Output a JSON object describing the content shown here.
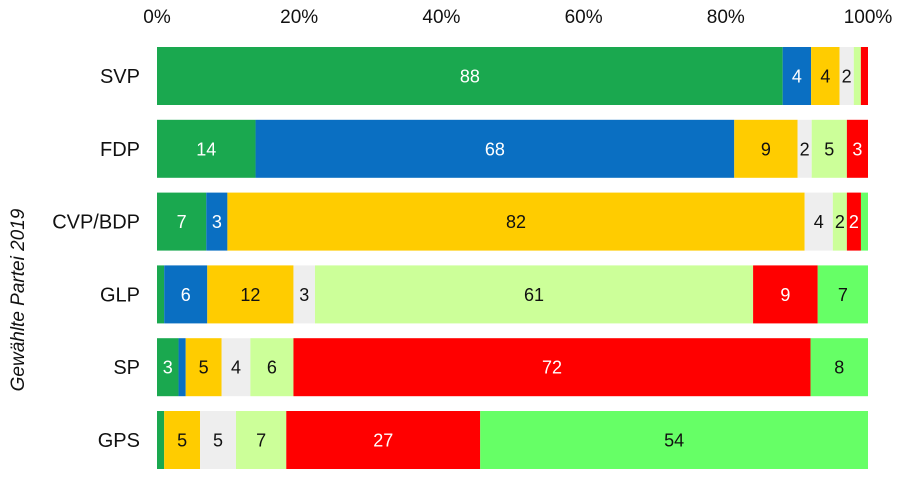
{
  "chart_data": {
    "type": "bar",
    "orientation": "horizontal",
    "stacked": true,
    "normalized_percent": true,
    "ylabel": "Gewählte Partei 2019",
    "xlabel": "",
    "xlim": [
      0,
      100
    ],
    "x_ticks": [
      "0%",
      "20%",
      "40%",
      "60%",
      "80%",
      "100%"
    ],
    "x_tick_values": [
      0,
      20,
      40,
      60,
      80,
      100
    ],
    "categories": [
      "SVP",
      "FDP",
      "CVP/BDP",
      "GLP",
      "SP",
      "GPS"
    ],
    "segment_colors": [
      "#1aa84f",
      "#0a6fc2",
      "#ffcc00",
      "#eeeeee",
      "#ccff99",
      "#ff0000",
      "#66ff66"
    ],
    "label_colors": [
      "#ffffff",
      "#ffffff",
      "#111111",
      "#111111",
      "#111111",
      "#ffffff",
      "#111111"
    ],
    "series": [
      {
        "values": [
          88,
          14,
          7,
          1,
          3,
          1
        ]
      },
      {
        "values": [
          4,
          68,
          3,
          6,
          1,
          0
        ]
      },
      {
        "values": [
          4,
          9,
          82,
          12,
          5,
          5
        ]
      },
      {
        "values": [
          2,
          2,
          4,
          3,
          4,
          5
        ]
      },
      {
        "values": [
          1,
          5,
          2,
          61,
          6,
          7
        ]
      },
      {
        "values": [
          1,
          3,
          2,
          9,
          72,
          27
        ]
      },
      {
        "values": [
          0,
          0,
          1,
          7,
          8,
          54
        ]
      }
    ],
    "data_labels": [
      [
        "88",
        "14",
        "7",
        "",
        "3",
        ""
      ],
      [
        "4",
        "68",
        "3",
        "6",
        "",
        ""
      ],
      [
        "4",
        "9",
        "82",
        "12",
        "5",
        "5"
      ],
      [
        "2",
        "2",
        "4",
        "3",
        "4",
        "5"
      ],
      [
        "",
        "5",
        "2",
        "61",
        "6",
        "7"
      ],
      [
        "",
        "3",
        "2",
        "9",
        "72",
        "27"
      ],
      [
        "",
        "",
        "",
        "7",
        "8",
        "54"
      ]
    ],
    "grid": false,
    "legend": "none"
  }
}
